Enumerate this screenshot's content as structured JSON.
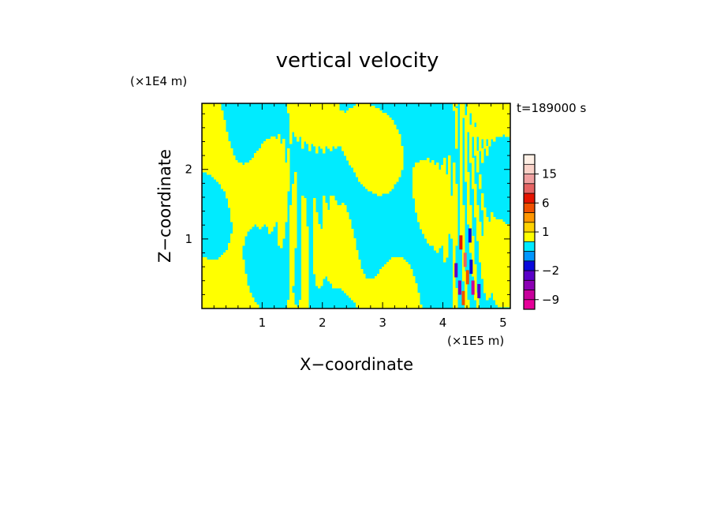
{
  "chart_data": {
    "type": "heatmap",
    "title": "vertical velocity",
    "xlabel": "X−coordinate",
    "ylabel": "Z−coordinate",
    "x_unit": "(×1E5 m)",
    "y_unit": "(×1E4 m)",
    "time_label": "t=189000 s",
    "xlim": [
      0,
      5.12
    ],
    "ylim": [
      0,
      2.95
    ],
    "x_ticks": [
      {
        "value": 1,
        "label": "1"
      },
      {
        "value": 2,
        "label": "2"
      },
      {
        "value": 3,
        "label": "3"
      },
      {
        "value": 4,
        "label": "4"
      },
      {
        "value": 5,
        "label": "5"
      }
    ],
    "y_ticks": [
      {
        "value": 1,
        "label": "1"
      },
      {
        "value": 2,
        "label": "2"
      }
    ],
    "colorbar": {
      "levels": [
        -12,
        -9,
        -6,
        -4,
        -2,
        -1,
        0,
        0.5,
        1,
        2,
        4,
        6,
        9,
        12,
        15,
        20,
        25
      ],
      "colors": [
        "#e60099",
        "#c8009b",
        "#8c00b4",
        "#5a00c8",
        "#0a0adc",
        "#0096ff",
        "#00ebff",
        "#ffff00",
        "#ffd200",
        "#ff9600",
        "#f05000",
        "#e61400",
        "#e66464",
        "#f0a0a0",
        "#fad2c8",
        "#fff0e6"
      ],
      "tick_labels": [
        {
          "value": -9,
          "label": "−9"
        },
        {
          "value": -2,
          "label": "−2"
        },
        {
          "value": 1,
          "label": "1"
        },
        {
          "value": 6,
          "label": "6"
        },
        {
          "value": 15,
          "label": "15"
        }
      ]
    },
    "field_colors": {
      "positive": "#ffff00",
      "negative": "#00ebff"
    },
    "strong_cells": [
      {
        "x": 4.3,
        "z": 0.95,
        "level": 6
      },
      {
        "x": 4.37,
        "z": 0.7,
        "level": 9
      },
      {
        "x": 4.41,
        "z": 0.45,
        "level": 4
      },
      {
        "x": 4.28,
        "z": 0.3,
        "level": -6
      },
      {
        "x": 4.22,
        "z": 0.55,
        "level": -4
      },
      {
        "x": 4.45,
        "z": 1.05,
        "level": -2
      },
      {
        "x": 4.5,
        "z": 0.3,
        "level": -9
      },
      {
        "x": 4.6,
        "z": 0.25,
        "level": -4
      },
      {
        "x": 4.34,
        "z": 0.15,
        "level": 4
      },
      {
        "x": 4.47,
        "z": 0.6,
        "level": -2
      }
    ]
  }
}
